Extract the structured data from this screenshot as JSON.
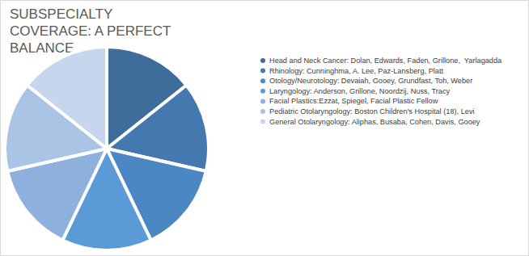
{
  "chart_data": {
    "type": "pie",
    "title": "SUBSPECIALTY COVERAGE: A PERFECT BALANCE",
    "categories": [
      "Head and Neck Cancer: Dolan, Edwards, Faden, Grillone,  Yarlagadda",
      "Rhinology: Cunninghma, A. Lee, Paz-Lansberg, Platt",
      "Otology/Neurotology: Devaiah, Gooey, Grundfast, Toh, Weber",
      "Laryngology: Anderson, Grillone, Noordzij, Nuss, Tracy",
      "Facial Plastics:Ezzat, Spiegel, Facial Plastic Fellow",
      "Pediatric Otolaryngology: Boston Children's Hospital (18), Levi",
      "General Otolaryngology: Aliphas, Busaba, Cohen, Davis, Gooey"
    ],
    "values": [
      14.3,
      14.3,
      14.3,
      14.3,
      14.3,
      14.3,
      14.3
    ],
    "colors": [
      "#3f6d9b",
      "#4479b0",
      "#4b87c3",
      "#5a9ad6",
      "#8db0dd",
      "#aac4e5",
      "#c6d6ec"
    ],
    "legend": "right"
  }
}
